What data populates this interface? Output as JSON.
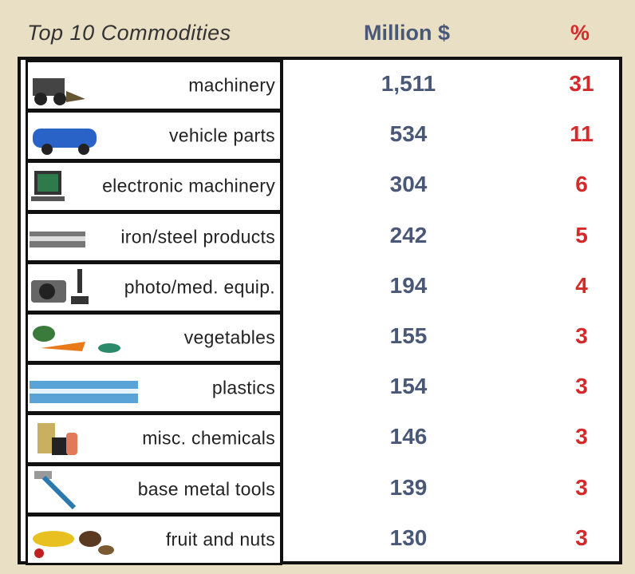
{
  "header": {
    "title": "Top 10 Commodities",
    "value_column": "Million $",
    "share_column": "%"
  },
  "table": {
    "rows": [
      [
        "machinery",
        "1,511",
        "31"
      ],
      [
        "vehicle parts",
        "534",
        "11"
      ],
      [
        "electronic machinery",
        "304",
        "6"
      ],
      [
        "iron/steel products",
        "242",
        "5"
      ],
      [
        "photo/med. equip.",
        "194",
        "4"
      ],
      [
        "vegetables",
        "155",
        "3"
      ],
      [
        "plastics",
        "154",
        "3"
      ],
      [
        "misc. chemicals",
        "146",
        "3"
      ],
      [
        "base metal tools",
        "139",
        "3"
      ],
      [
        "fruit and nuts",
        "130",
        "3"
      ]
    ]
  }
}
